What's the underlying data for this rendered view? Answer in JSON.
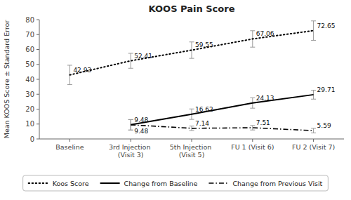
{
  "chart_data": {
    "type": "line",
    "title": "KOOS Pain Score",
    "ylabel": "Mean KOOS Score ± Standard Error",
    "categories": [
      "Baseline",
      "3rd Injection (Visit 3)",
      "5th Injection (Visit 5)",
      "FU 1 (Visit 6)",
      "FU 2 (Visit 7)"
    ],
    "series": [
      {
        "name": "Koos Score",
        "color": "black",
        "line_style": "dotted",
        "values": [
          42.93,
          52.41,
          59.55,
          67.06,
          72.65
        ],
        "errors": [
          6.5,
          5.0,
          5.5,
          5.5,
          6.5
        ]
      },
      {
        "name": "Change from Baseline",
        "color": "black",
        "line_style": "solid",
        "values": [
          null,
          9.48,
          16.62,
          24.13,
          29.71
        ],
        "errors": [
          null,
          3.5,
          3.5,
          3.5,
          3.0
        ]
      },
      {
        "name": "Change from Previous Visit",
        "color": "black",
        "line_style": "dashdot",
        "values": [
          null,
          9.48,
          7.14,
          7.51,
          5.59
        ],
        "errors": [
          null,
          3.5,
          1.5,
          1.5,
          1.5
        ]
      }
    ],
    "ylim": [
      0,
      80
    ],
    "yticks": [
      0,
      10,
      20,
      30,
      40,
      50,
      60,
      70,
      80
    ],
    "grid": false,
    "legend": "bottom",
    "data_labels": true
  }
}
